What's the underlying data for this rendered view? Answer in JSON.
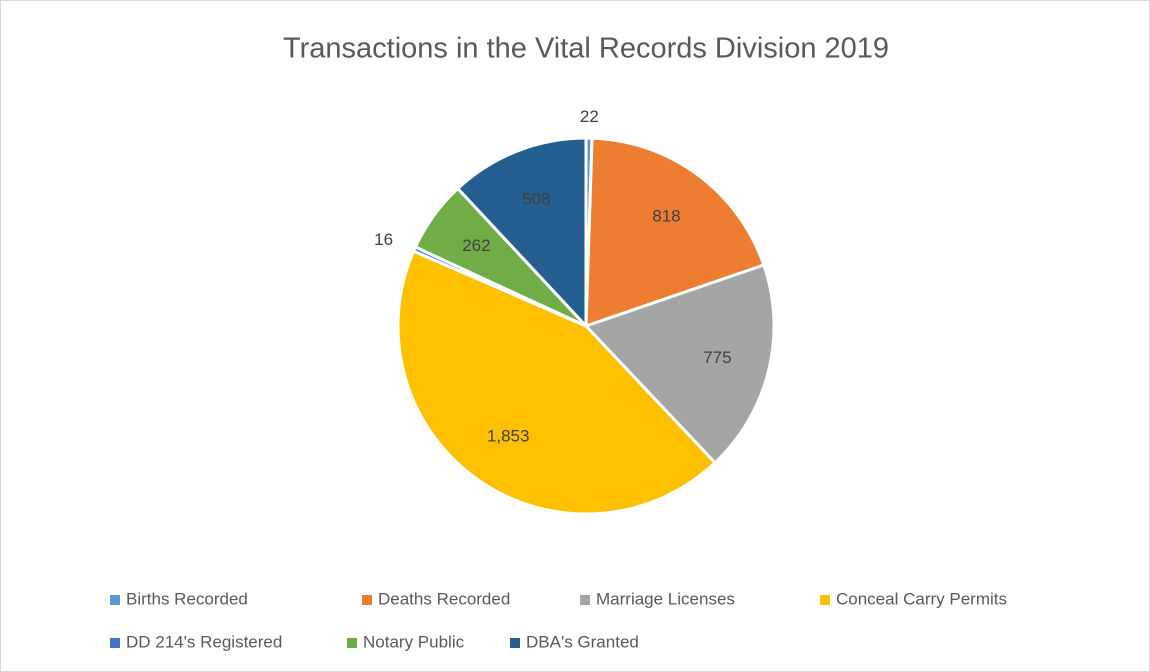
{
  "chart_data": {
    "type": "pie",
    "title": "Transactions in the Vital Records Division 2019",
    "categories": [
      "Births Recorded",
      "Deaths Recorded",
      "Marriage Licenses",
      "Conceal Carry Permits",
      "DD 214's Registered",
      "Notary Public",
      "DBA's Granted"
    ],
    "values": [
      22,
      818,
      775,
      1853,
      16,
      262,
      508
    ],
    "value_labels": [
      "22",
      "818",
      "775",
      "1,853",
      "16",
      "262",
      "508"
    ],
    "colors": [
      "#5b9bd5",
      "#ed7d31",
      "#a5a5a5",
      "#ffc000",
      "#4472c4",
      "#70ad47",
      "#255e91"
    ],
    "legend": "bottom"
  }
}
